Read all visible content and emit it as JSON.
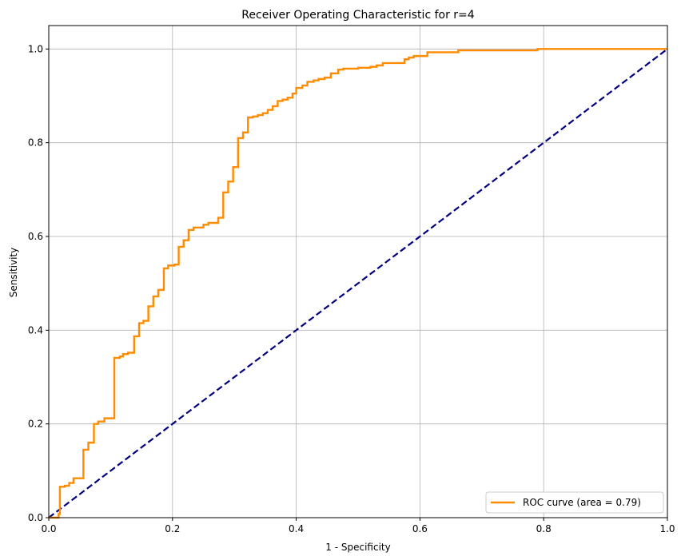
{
  "chart_data": {
    "type": "line",
    "title": "Receiver Operating Characteristic for r=4",
    "xlabel": "1 - Specificity",
    "ylabel": "Sensitivity",
    "xlim": [
      0.0,
      1.0
    ],
    "ylim": [
      0.0,
      1.05
    ],
    "xticks": [
      "0.0",
      "0.2",
      "0.4",
      "0.6",
      "0.8",
      "1.0"
    ],
    "yticks": [
      "0.0",
      "0.2",
      "0.4",
      "0.6",
      "0.8",
      "1.0"
    ],
    "grid": true,
    "legend_position": "lower-right",
    "series": [
      {
        "name": "ROC curve (area = 0.79)",
        "color": "#ff8c00",
        "style": "solid",
        "steps": [
          [
            0.0,
            0.0
          ],
          [
            0.016,
            0.0
          ],
          [
            0.016,
            0.008
          ],
          [
            0.018,
            0.008
          ],
          [
            0.018,
            0.066
          ],
          [
            0.026,
            0.066
          ],
          [
            0.026,
            0.068
          ],
          [
            0.033,
            0.068
          ],
          [
            0.033,
            0.074
          ],
          [
            0.04,
            0.074
          ],
          [
            0.04,
            0.084
          ],
          [
            0.056,
            0.084
          ],
          [
            0.056,
            0.145
          ],
          [
            0.064,
            0.145
          ],
          [
            0.064,
            0.16
          ],
          [
            0.073,
            0.16
          ],
          [
            0.073,
            0.2
          ],
          [
            0.08,
            0.2
          ],
          [
            0.08,
            0.205
          ],
          [
            0.09,
            0.205
          ],
          [
            0.09,
            0.212
          ],
          [
            0.106,
            0.212
          ],
          [
            0.106,
            0.341
          ],
          [
            0.115,
            0.341
          ],
          [
            0.115,
            0.344
          ],
          [
            0.12,
            0.344
          ],
          [
            0.12,
            0.349
          ],
          [
            0.128,
            0.349
          ],
          [
            0.128,
            0.352
          ],
          [
            0.138,
            0.352
          ],
          [
            0.138,
            0.387
          ],
          [
            0.146,
            0.387
          ],
          [
            0.146,
            0.415
          ],
          [
            0.153,
            0.415
          ],
          [
            0.153,
            0.42
          ],
          [
            0.161,
            0.42
          ],
          [
            0.161,
            0.451
          ],
          [
            0.169,
            0.451
          ],
          [
            0.169,
            0.472
          ],
          [
            0.177,
            0.472
          ],
          [
            0.177,
            0.486
          ],
          [
            0.186,
            0.486
          ],
          [
            0.186,
            0.532
          ],
          [
            0.193,
            0.532
          ],
          [
            0.193,
            0.538
          ],
          [
            0.203,
            0.538
          ],
          [
            0.203,
            0.54
          ],
          [
            0.21,
            0.54
          ],
          [
            0.21,
            0.578
          ],
          [
            0.218,
            0.578
          ],
          [
            0.218,
            0.592
          ],
          [
            0.226,
            0.592
          ],
          [
            0.226,
            0.614
          ],
          [
            0.234,
            0.614
          ],
          [
            0.234,
            0.619
          ],
          [
            0.25,
            0.619
          ],
          [
            0.25,
            0.625
          ],
          [
            0.258,
            0.625
          ],
          [
            0.258,
            0.629
          ],
          [
            0.274,
            0.629
          ],
          [
            0.274,
            0.64
          ],
          [
            0.282,
            0.64
          ],
          [
            0.282,
            0.694
          ],
          [
            0.29,
            0.694
          ],
          [
            0.29,
            0.717
          ],
          [
            0.298,
            0.717
          ],
          [
            0.298,
            0.748
          ],
          [
            0.306,
            0.748
          ],
          [
            0.306,
            0.81
          ],
          [
            0.314,
            0.81
          ],
          [
            0.314,
            0.822
          ],
          [
            0.322,
            0.822
          ],
          [
            0.322,
            0.854
          ],
          [
            0.33,
            0.854
          ],
          [
            0.33,
            0.856
          ],
          [
            0.338,
            0.856
          ],
          [
            0.338,
            0.859
          ],
          [
            0.346,
            0.859
          ],
          [
            0.346,
            0.863
          ],
          [
            0.354,
            0.863
          ],
          [
            0.354,
            0.87
          ],
          [
            0.362,
            0.87
          ],
          [
            0.362,
            0.878
          ],
          [
            0.37,
            0.878
          ],
          [
            0.37,
            0.889
          ],
          [
            0.378,
            0.889
          ],
          [
            0.378,
            0.892
          ],
          [
            0.386,
            0.892
          ],
          [
            0.386,
            0.896
          ],
          [
            0.394,
            0.896
          ],
          [
            0.394,
            0.905
          ],
          [
            0.4,
            0.905
          ],
          [
            0.4,
            0.917
          ],
          [
            0.41,
            0.917
          ],
          [
            0.41,
            0.922
          ],
          [
            0.418,
            0.922
          ],
          [
            0.418,
            0.93
          ],
          [
            0.428,
            0.93
          ],
          [
            0.428,
            0.933
          ],
          [
            0.436,
            0.933
          ],
          [
            0.436,
            0.936
          ],
          [
            0.446,
            0.936
          ],
          [
            0.446,
            0.939
          ],
          [
            0.456,
            0.939
          ],
          [
            0.456,
            0.948
          ],
          [
            0.468,
            0.948
          ],
          [
            0.468,
            0.956
          ],
          [
            0.476,
            0.956
          ],
          [
            0.476,
            0.958
          ],
          [
            0.5,
            0.958
          ],
          [
            0.5,
            0.96
          ],
          [
            0.52,
            0.96
          ],
          [
            0.52,
            0.962
          ],
          [
            0.53,
            0.962
          ],
          [
            0.53,
            0.965
          ],
          [
            0.54,
            0.965
          ],
          [
            0.54,
            0.97
          ],
          [
            0.575,
            0.97
          ],
          [
            0.575,
            0.978
          ],
          [
            0.582,
            0.978
          ],
          [
            0.582,
            0.982
          ],
          [
            0.59,
            0.982
          ],
          [
            0.59,
            0.985
          ],
          [
            0.612,
            0.985
          ],
          [
            0.612,
            0.993
          ],
          [
            0.662,
            0.993
          ],
          [
            0.662,
            0.997
          ],
          [
            0.79,
            0.997
          ],
          [
            0.79,
            1.0
          ],
          [
            1.0,
            1.0
          ]
        ]
      },
      {
        "name": "",
        "color": "#000080",
        "style": "dashed",
        "points": [
          [
            0.0,
            0.0
          ],
          [
            1.0,
            1.0
          ]
        ]
      }
    ]
  }
}
